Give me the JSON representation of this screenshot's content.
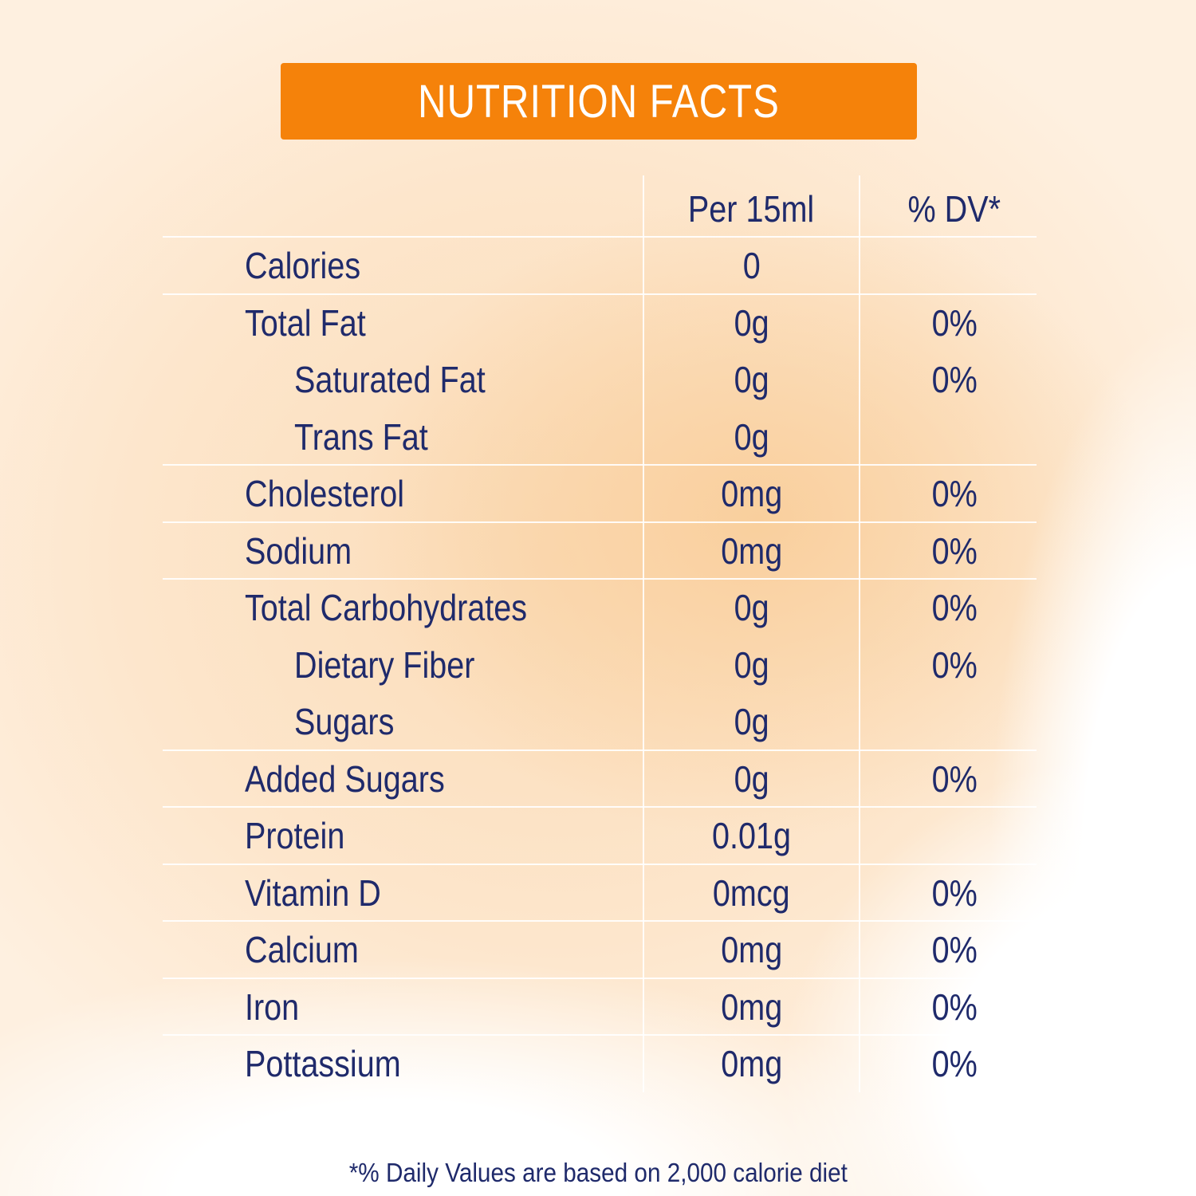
{
  "title": "NUTRITION FACTS",
  "header": {
    "amount": "Per 15ml",
    "dv": "% DV*"
  },
  "rows": [
    {
      "name": "Calories",
      "amount": "0",
      "dv": "",
      "sub": false
    },
    {
      "name": "Total Fat",
      "amount": "0g",
      "dv": "0%",
      "sub": false
    },
    {
      "name": "Saturated Fat",
      "amount": "0g",
      "dv": "0%",
      "sub": true
    },
    {
      "name": "Trans Fat",
      "amount": "0g",
      "dv": "",
      "sub": true
    },
    {
      "name": "Cholesterol",
      "amount": "0mg",
      "dv": "0%",
      "sub": false
    },
    {
      "name": "Sodium",
      "amount": "0mg",
      "dv": "0%",
      "sub": false
    },
    {
      "name": "Total Carbohydrates",
      "amount": "0g",
      "dv": "0%",
      "sub": false
    },
    {
      "name": "Dietary Fiber",
      "amount": "0g",
      "dv": "0%",
      "sub": true
    },
    {
      "name": "Sugars",
      "amount": "0g",
      "dv": "",
      "sub": true
    },
    {
      "name": "Added Sugars",
      "amount": "0g",
      "dv": "0%",
      "sub": false
    },
    {
      "name": "Protein",
      "amount": "0.01g",
      "dv": "",
      "sub": false
    },
    {
      "name": "Vitamin D",
      "amount": "0mcg",
      "dv": "0%",
      "sub": false
    },
    {
      "name": "Calcium",
      "amount": "0mg",
      "dv": "0%",
      "sub": false
    },
    {
      "name": "Iron",
      "amount": "0mg",
      "dv": "0%",
      "sub": false
    },
    {
      "name": "Pottassium",
      "amount": "0mg",
      "dv": "0%",
      "sub": false
    }
  ],
  "footnote": "*% Daily Values are based on 2,000 calorie diet",
  "colors": {
    "banner": "#f5820a",
    "text": "#1f2a6b"
  }
}
